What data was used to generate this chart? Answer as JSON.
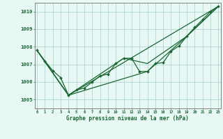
{
  "background_color": "#e8f8f5",
  "plot_bg_color": "#e8f8f5",
  "grid_color": "#b0d8d0",
  "line_color": "#1a6632",
  "title": "Graphe pression niveau de la mer (hPa)",
  "xlim": [
    -0.3,
    23.3
  ],
  "ylim": [
    1004.5,
    1010.5
  ],
  "yticks": [
    1005,
    1006,
    1007,
    1008,
    1009,
    1010
  ],
  "xticks": [
    0,
    1,
    2,
    3,
    4,
    5,
    6,
    7,
    8,
    9,
    10,
    11,
    12,
    13,
    14,
    15,
    16,
    17,
    18,
    19,
    20,
    21,
    22,
    23
  ],
  "series1_x": [
    0,
    1,
    2,
    3,
    4,
    5,
    6,
    7,
    8,
    9,
    10,
    11,
    12,
    13,
    14,
    15,
    16,
    17,
    18,
    19,
    20,
    21,
    22,
    23
  ],
  "series1_y": [
    1007.8,
    1007.2,
    1006.65,
    1006.25,
    1005.25,
    1005.55,
    1005.65,
    1006.0,
    1006.35,
    1006.45,
    1007.05,
    1007.35,
    1007.35,
    1006.6,
    1006.6,
    1007.05,
    1007.1,
    1007.75,
    1008.05,
    1008.6,
    1009.1,
    1009.55,
    1010.0,
    1010.3
  ],
  "series2_x": [
    0,
    4,
    23
  ],
  "series2_y": [
    1007.8,
    1005.25,
    1010.3
  ],
  "series3_x": [
    0,
    4,
    14,
    19,
    23
  ],
  "series3_y": [
    1007.8,
    1005.25,
    1006.6,
    1008.6,
    1010.3
  ],
  "series4_x": [
    0,
    4,
    11,
    14,
    19,
    23
  ],
  "series4_y": [
    1007.8,
    1005.25,
    1007.35,
    1007.05,
    1008.6,
    1010.3
  ]
}
